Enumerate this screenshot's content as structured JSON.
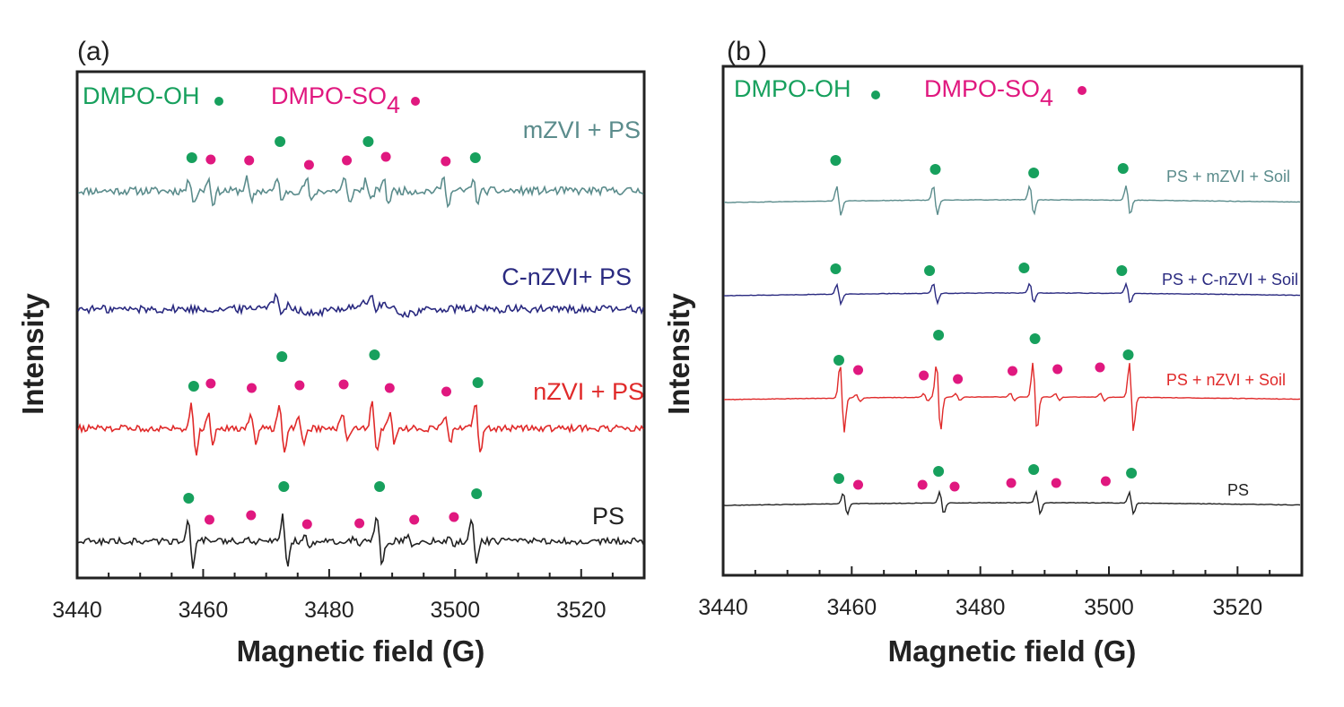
{
  "colors": {
    "oh_marker": "#17a05d",
    "so4_marker": "#e0187f",
    "teal": "#5b8c8c",
    "navy": "#2a2a80",
    "red": "#e02a2a",
    "black": "#222222"
  },
  "legend": {
    "oh_text": "DMPO-OH",
    "so4_text": "DMPO-SO",
    "so4_sub": "4"
  },
  "chart_data": [
    {
      "type": "line",
      "panel": "(a)",
      "xlabel": "Magnetic field (G)",
      "ylabel": "Intensity",
      "xlim": [
        3440,
        3530
      ],
      "xticks": [
        3440,
        3460,
        3480,
        3500,
        3520
      ],
      "yticks_shown": false,
      "series": [
        {
          "name": "mZVI + PS",
          "color": "#5b8c8c",
          "noise": 1.1,
          "oh_peaks": [
            3458.2,
            3472.2,
            3486.2,
            3503.2
          ],
          "so4_peaks": [
            3461.2,
            3467.3,
            3476.8,
            3482.8,
            3489.0,
            3498.5
          ],
          "oh_amp": 4.5,
          "so4_amp": 5,
          "oh_markers": [
            3458.2,
            3472.2,
            3486.2,
            3503.2
          ],
          "so4_markers": [
            3461.2,
            3467.3,
            3476.8,
            3482.8,
            3489.0,
            3498.5
          ]
        },
        {
          "name": "C-nZVI+ PS",
          "color": "#2a2a80",
          "noise": 1.1,
          "oh_peaks": [
            3472,
            3487
          ],
          "so4_peaks": [],
          "oh_amp": 3,
          "so4_amp": 0,
          "oh_markers": [],
          "so4_markers": []
        },
        {
          "name": "nZVI + PS",
          "color": "#e02a2a",
          "noise": 0.9,
          "oh_peaks": [
            3458.5,
            3472.5,
            3487.2,
            3503.6
          ],
          "so4_peaks": [
            3461.2,
            3468.0,
            3475.5,
            3482.5,
            3490.0,
            3498.8
          ],
          "oh_amp": 10,
          "so4_amp": 6,
          "oh_markers": [
            3458.5,
            3472.5,
            3487.2,
            3503.6
          ],
          "so4_markers": [
            3461.2,
            3467.7,
            3475.3,
            3482.3,
            3489.6,
            3498.6
          ]
        },
        {
          "name": "PS",
          "color": "#222222",
          "noise": 0.9,
          "oh_peaks": [
            3458.0,
            3473.0,
            3488.0,
            3503.0
          ],
          "so4_peaks": [
            3461.0,
            3467.5,
            3476.5,
            3484.5,
            3492.8,
            3499.5
          ],
          "oh_amp": 10,
          "so4_amp": 1.5,
          "oh_markers": [
            3457.7,
            3472.8,
            3488.0,
            3503.4
          ],
          "so4_markers": [
            3461.0,
            3467.6,
            3476.5,
            3484.8,
            3493.5,
            3499.8
          ]
        }
      ]
    },
    {
      "type": "line",
      "panel": "(b )",
      "xlabel": "Magnetic field (G)",
      "ylabel": "Intensity",
      "xlim": [
        3440,
        3530
      ],
      "xticks": [
        3440,
        3460,
        3480,
        3500,
        3520
      ],
      "yticks_shown": false,
      "series": [
        {
          "name": "PS + mZVI + Soil",
          "color": "#5b8c8c",
          "noise": 0,
          "oh_peaks": [
            3458.0,
            3473.0,
            3488.0,
            3503.0
          ],
          "so4_peaks": [],
          "oh_amp": 6,
          "so4_amp": 0,
          "oh_markers": [
            3457.5,
            3473.0,
            3488.3,
            3502.2
          ],
          "so4_markers": []
        },
        {
          "name": "PS + C-nZVI + Soil",
          "color": "#2a2a80",
          "noise": 0,
          "oh_peaks": [
            3458.0,
            3473.0,
            3488.0,
            3503.0
          ],
          "so4_peaks": [],
          "oh_amp": 4,
          "so4_amp": 0,
          "oh_markers": [
            3457.5,
            3472.1,
            3486.8,
            3502.0
          ],
          "so4_markers": []
        },
        {
          "name": "PS + nZVI + Soil",
          "color": "#e02a2a",
          "noise": 0,
          "oh_peaks": [
            3458.5,
            3473.5,
            3488.5,
            3503.5
          ],
          "so4_peaks": [
            3461.0,
            3471.5,
            3476.5,
            3485.0,
            3492.0,
            3499.0
          ],
          "oh_amp": 14,
          "so4_amp": 1.5,
          "oh_markers": [
            3458.0,
            3473.5,
            3488.5,
            3503.0
          ],
          "so4_markers": [
            3461.0,
            3471.2,
            3476.5,
            3485.0,
            3492.0,
            3498.6
          ]
        },
        {
          "name": "PS",
          "color": "#222222",
          "noise": 0,
          "oh_peaks": [
            3459.0,
            3474.0,
            3489.0,
            3503.5
          ],
          "so4_peaks": [],
          "oh_amp": 4.5,
          "so4_amp": 0,
          "oh_markers": [
            3458.0,
            3473.5,
            3488.3,
            3503.5
          ],
          "so4_markers": [
            3461.0,
            3471.0,
            3476.0,
            3484.8,
            3491.8,
            3499.5
          ]
        }
      ]
    }
  ]
}
